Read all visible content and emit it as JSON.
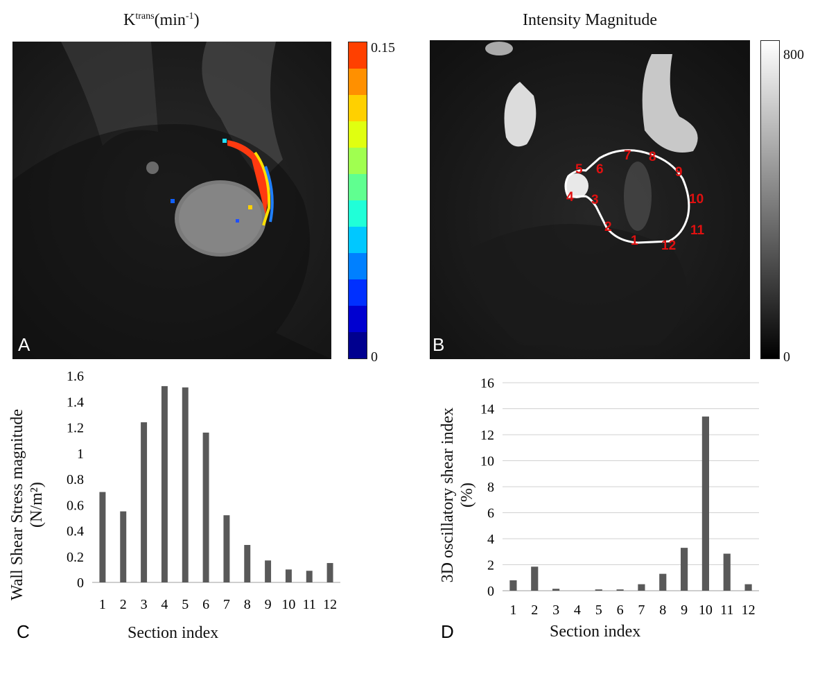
{
  "panel_a": {
    "title_base": "K",
    "title_sup": "trans",
    "title_rest": "(min",
    "title_sup2": "-1",
    "title_end": ")",
    "letter": "A",
    "colorbar_max": "0.15",
    "colorbar_min": "0",
    "colorbar_colors": [
      "#00008f",
      "#0000d0",
      "#0030ff",
      "#0080ff",
      "#00c8ff",
      "#20ffd8",
      "#60ff90",
      "#a0ff50",
      "#e0ff10",
      "#ffd000",
      "#ff9000",
      "#ff4000"
    ]
  },
  "panel_b": {
    "title": "Intensity Magnitude",
    "letter": "B",
    "colorbar_max": "800",
    "colorbar_min": "0",
    "section_labels": [
      "1",
      "2",
      "3",
      "4",
      "5",
      "6",
      "7",
      "8",
      "9",
      "10",
      "11",
      "12"
    ],
    "label_color": "#e01010"
  },
  "panel_c": {
    "letter": "C"
  },
  "panel_d": {
    "letter": "D"
  },
  "chart_data": [
    {
      "type": "bar",
      "panel": "C",
      "categories": [
        "1",
        "2",
        "3",
        "4",
        "5",
        "6",
        "7",
        "8",
        "9",
        "10",
        "11",
        "12"
      ],
      "values": [
        0.7,
        0.55,
        1.24,
        1.52,
        1.51,
        1.16,
        0.52,
        0.29,
        0.17,
        0.1,
        0.09,
        0.15
      ],
      "ylim": [
        0,
        1.6
      ],
      "yticks": [
        "0",
        "0.2",
        "0.4",
        "0.6",
        "0.8",
        "1",
        "1.2",
        "1.4",
        "1.6"
      ],
      "ylabel": "Wall Shear Stress magnitude",
      "ylabel2": "(N/m²)",
      "xlabel": "Section index",
      "grid": false,
      "bar_color": "#595959"
    },
    {
      "type": "bar",
      "panel": "D",
      "categories": [
        "1",
        "2",
        "3",
        "4",
        "5",
        "6",
        "7",
        "8",
        "9",
        "10",
        "11",
        "12"
      ],
      "values": [
        0.8,
        1.85,
        0.15,
        0.0,
        0.1,
        0.1,
        0.5,
        1.3,
        3.3,
        13.4,
        2.85,
        0.5
      ],
      "ylim": [
        0,
        16
      ],
      "yticks": [
        "0",
        "2",
        "4",
        "6",
        "8",
        "10",
        "12",
        "14",
        "16"
      ],
      "ylabel": "3D oscillatory shear index",
      "ylabel2": "(%)",
      "xlabel": "Section index",
      "grid": true,
      "bar_color": "#595959"
    }
  ]
}
